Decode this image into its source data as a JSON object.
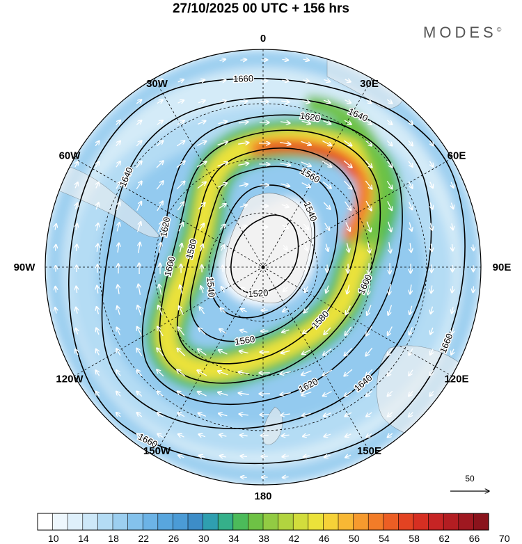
{
  "header": {
    "title": "27/10/2025  00 UTC  + 156 hrs",
    "brand": "MODES",
    "brand_mark": "©"
  },
  "map": {
    "projection": "polar-stereographic-south",
    "longitude_labels": [
      {
        "text": "0",
        "lon": 0
      },
      {
        "text": "30E",
        "lon": 30
      },
      {
        "text": "60E",
        "lon": 60
      },
      {
        "text": "90E",
        "lon": 90
      },
      {
        "text": "120E",
        "lon": 120
      },
      {
        "text": "150E",
        "lon": 150
      },
      {
        "text": "180",
        "lon": 180
      },
      {
        "text": "150W",
        "lon": -150
      },
      {
        "text": "120W",
        "lon": -120
      },
      {
        "text": "90W",
        "lon": -90
      },
      {
        "text": "60W",
        "lon": -60
      },
      {
        "text": "30W",
        "lon": -30
      }
    ],
    "contour_labels": [
      "1520",
      "1540",
      "1560",
      "1580",
      "1600",
      "1620",
      "1640",
      "1660"
    ],
    "contour_levels": [
      1520,
      1540,
      1560,
      1580,
      1600,
      1620,
      1640,
      1660
    ],
    "wind_reference": {
      "value": "50"
    },
    "colors": {
      "land": "#f0f0f0",
      "ocean": "#ffffff",
      "contour": "#000000",
      "vector": "#ffffff"
    }
  },
  "colorbar": {
    "tick_labels": [
      "10",
      "14",
      "18",
      "22",
      "26",
      "30",
      "34",
      "38",
      "42",
      "46",
      "50",
      "54",
      "58",
      "62",
      "66",
      "70"
    ],
    "colors": [
      "#ffffff",
      "#eef7fd",
      "#dff0fb",
      "#cde8f8",
      "#b4dcf4",
      "#9ccff0",
      "#84c2ec",
      "#6cb3e6",
      "#58a6de",
      "#4b9bd6",
      "#3d8dc8",
      "#2f9fb0",
      "#35b08a",
      "#4cbb5a",
      "#6ec245",
      "#92cb43",
      "#b2d43f",
      "#d2dd3c",
      "#ebe23a",
      "#f6d238",
      "#f8b834",
      "#f69a2e",
      "#f27c28",
      "#ec5e24",
      "#e34322",
      "#d62f22",
      "#c62424",
      "#b31d22",
      "#9f1820",
      "#8a131c"
    ]
  }
}
